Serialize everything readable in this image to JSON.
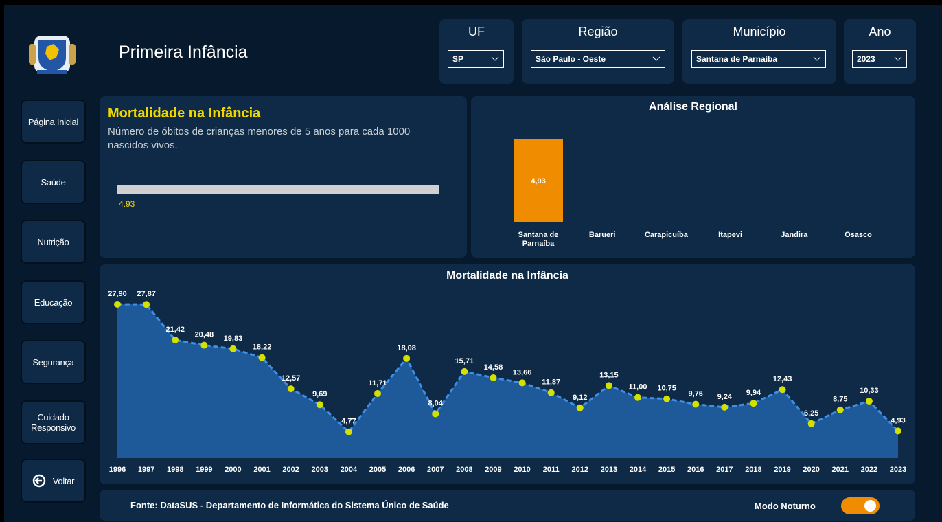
{
  "header": {
    "title": "Primeira Infância"
  },
  "filters": [
    {
      "label": "UF",
      "value": "SP"
    },
    {
      "label": "Região",
      "value": "São Paulo - Oeste"
    },
    {
      "label": "Município",
      "value": "Santana de Parnaíba"
    },
    {
      "label": "Ano",
      "value": "2023"
    }
  ],
  "nav": [
    "Página Inicial",
    "Saúde",
    "Nutrição",
    "Educação",
    "Segurança",
    "Cuidado Responsivo",
    "Voltar"
  ],
  "kpi": {
    "title": "Mortalidade na Infância",
    "subtitle": "Número de óbitos de crianças menores de 5 anos para cada 1000 nascidos vivos.",
    "value": 4.93
  },
  "regional_chart": {
    "type": "bar",
    "title": "Análise Regional",
    "color": "#f08c00",
    "categories": [
      "Santana de Parnaíba",
      "Barueri",
      "Carapicuíba",
      "Itapevi",
      "Jandira",
      "Osasco"
    ],
    "values": [
      4.93,
      null,
      null,
      null,
      null,
      null
    ],
    "value_labels": [
      "4,93",
      null,
      null,
      null,
      null,
      null
    ]
  },
  "trend_chart": {
    "type": "line",
    "title": "Mortalidade na Infância",
    "color": "#3d8fe8",
    "area_color": "#1e5a99",
    "point_color": "#d4e000",
    "x": [
      1996,
      1997,
      1998,
      1999,
      2000,
      2001,
      2002,
      2003,
      2004,
      2005,
      2006,
      2007,
      2008,
      2009,
      2010,
      2011,
      2012,
      2013,
      2014,
      2015,
      2016,
      2017,
      2018,
      2019,
      2020,
      2021,
      2022,
      2023
    ],
    "values": [
      27.9,
      27.87,
      21.42,
      20.48,
      19.83,
      18.22,
      12.57,
      9.69,
      4.77,
      11.71,
      18.08,
      8.04,
      15.71,
      14.58,
      13.66,
      11.87,
      9.12,
      13.15,
      11.0,
      10.75,
      9.76,
      9.24,
      9.94,
      12.43,
      6.25,
      8.75,
      10.33,
      4.93
    ],
    "value_labels": [
      "27,90",
      "27,87",
      "21,42",
      "20,48",
      "19,83",
      "18,22",
      "12,57",
      "9,69",
      "4,77",
      "11,71",
      "18,08",
      "8,04",
      "15,71",
      "14,58",
      "13,66",
      "11,87",
      "9,12",
      "13,15",
      "11,00",
      "10,75",
      "9,76",
      "9,24",
      "9,94",
      "12,43",
      "6,25",
      "8,75",
      "10,33",
      "4,93"
    ]
  },
  "footer": {
    "source": "Fonte: DataSUS - Departamento de Informática do Sistema Único de Saúde",
    "toggle_label": "Modo Noturno"
  }
}
